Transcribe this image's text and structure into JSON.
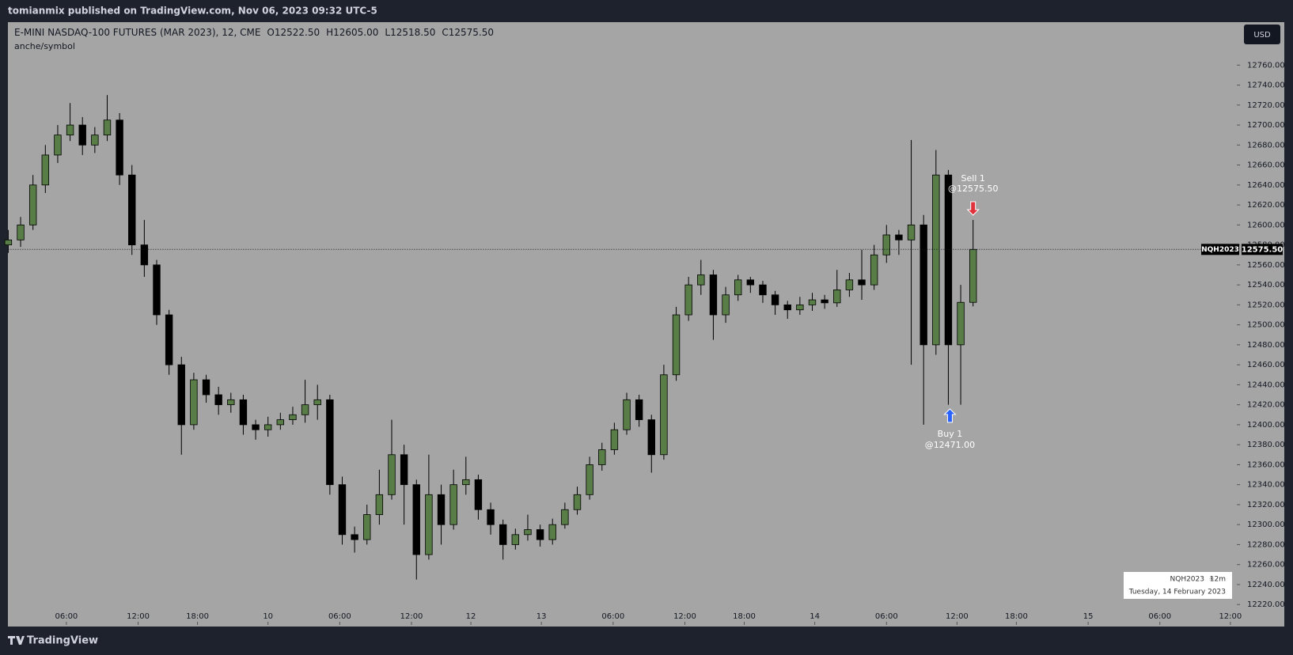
{
  "header": {
    "publisher": "tomianmix published on TradingView.com, Nov 06, 2023 09:32 UTC-5",
    "brand": "TradingView"
  },
  "chart_data": {
    "type": "candlestick",
    "symbol": "E-MINI NASDAQ-100 FUTURES (MAR 2023), 12, CME",
    "ohlc_labels": [
      "O12522.50",
      "H12605.00",
      "L12518.50",
      "C12575.50"
    ],
    "indicator": "anche/symbol",
    "currency": "USD",
    "ticker": "NQH2023",
    "last_price": {
      "value": 12575.5,
      "label": "12575.50"
    },
    "up_color": "#587d46",
    "down_color": "#000000",
    "x": [
      0,
      1,
      2,
      3,
      4,
      5,
      6,
      7,
      8,
      9,
      10,
      11,
      12,
      13,
      14,
      15,
      16,
      17,
      18,
      19,
      20,
      21,
      22,
      23,
      24,
      25,
      26,
      27,
      28,
      29,
      30,
      31,
      32,
      33,
      34,
      35,
      36,
      37,
      38,
      39,
      40,
      41,
      42,
      43,
      44,
      45,
      46,
      47,
      48,
      49,
      50,
      51,
      52,
      53,
      54,
      55,
      56,
      57,
      58,
      59,
      60,
      61,
      62,
      63,
      64,
      65,
      66,
      67,
      68,
      69,
      70,
      71,
      72,
      73,
      74,
      75,
      76,
      77,
      78
    ],
    "open": [
      12580,
      12585,
      12600,
      12640,
      12670,
      12690,
      12700,
      12680,
      12690,
      12705,
      12650,
      12580,
      12560,
      12510,
      12460,
      12400,
      12445,
      12430,
      12420,
      12425,
      12400,
      12395,
      12400,
      12405,
      12410,
      12420,
      12425,
      12340,
      12290,
      12285,
      12310,
      12330,
      12370,
      12340,
      12270,
      12330,
      12300,
      12340,
      12345,
      12315,
      12300,
      12280,
      12290,
      12295,
      12285,
      12300,
      12315,
      12330,
      12360,
      12375,
      12395,
      12425,
      12405,
      12370,
      12450,
      12510,
      12540,
      12550,
      12510,
      12530,
      12545,
      12540,
      12530,
      12520,
      12515,
      12520,
      12525,
      12522,
      12535,
      12545,
      12540,
      12570,
      12590,
      12585,
      12600,
      12480,
      12650,
      12480,
      12522.5
    ],
    "high": [
      12595,
      12608,
      12650,
      12680,
      12700,
      12722,
      12708,
      12698,
      12730,
      12712,
      12660,
      12605,
      12565,
      12515,
      12468,
      12452,
      12450,
      12438,
      12432,
      12430,
      12405,
      12408,
      12412,
      12418,
      12445,
      12440,
      12430,
      12348,
      12298,
      12320,
      12355,
      12405,
      12380,
      12345,
      12370,
      12340,
      12355,
      12368,
      12350,
      12322,
      12305,
      12296,
      12310,
      12300,
      12306,
      12322,
      12338,
      12368,
      12382,
      12402,
      12432,
      12430,
      12410,
      12460,
      12518,
      12548,
      12565,
      12555,
      12538,
      12550,
      12548,
      12544,
      12534,
      12524,
      12528,
      12532,
      12530,
      12555,
      12552,
      12575,
      12580,
      12600,
      12595,
      12685,
      12610,
      12675,
      12655,
      12540,
      12605
    ],
    "low": [
      12572,
      12578,
      12595,
      12632,
      12662,
      12684,
      12670,
      12672,
      12684,
      12640,
      12570,
      12548,
      12500,
      12450,
      12370,
      12395,
      12422,
      12410,
      12412,
      12390,
      12385,
      12388,
      12395,
      12400,
      12402,
      12405,
      12330,
      12280,
      12272,
      12280,
      12300,
      12325,
      12300,
      12245,
      12265,
      12280,
      12295,
      12330,
      12305,
      12290,
      12265,
      12275,
      12284,
      12278,
      12280,
      12296,
      12310,
      12325,
      12354,
      12370,
      12390,
      12398,
      12352,
      12365,
      12444,
      12504,
      12530,
      12485,
      12502,
      12524,
      12532,
      12522,
      12510,
      12506,
      12510,
      12514,
      12516,
      12518,
      12528,
      12525,
      12535,
      12562,
      12570,
      12460,
      12400,
      12470,
      12420,
      12420,
      12518.5
    ],
    "close": [
      12585,
      12600,
      12640,
      12670,
      12690,
      12700,
      12680,
      12690,
      12705,
      12650,
      12580,
      12560,
      12510,
      12460,
      12400,
      12445,
      12430,
      12420,
      12425,
      12400,
      12395,
      12400,
      12405,
      12410,
      12420,
      12425,
      12340,
      12290,
      12285,
      12310,
      12330,
      12370,
      12340,
      12270,
      12330,
      12300,
      12340,
      12345,
      12315,
      12300,
      12280,
      12290,
      12295,
      12285,
      12300,
      12315,
      12330,
      12360,
      12375,
      12395,
      12425,
      12405,
      12370,
      12450,
      12510,
      12540,
      12550,
      12510,
      12530,
      12545,
      12540,
      12530,
      12520,
      12515,
      12520,
      12525,
      12522,
      12535,
      12545,
      12540,
      12570,
      12590,
      12585,
      12600,
      12480,
      12650,
      12480,
      12522.5,
      12575.5
    ],
    "xlim": [
      0,
      99.33
    ],
    "xticks": [
      {
        "value": 4.7,
        "label": "06:00"
      },
      {
        "value": 10.5,
        "label": "12:00"
      },
      {
        "value": 15.3,
        "label": "18:00"
      },
      {
        "value": 21,
        "label": "10"
      },
      {
        "value": 26.8,
        "label": "06:00"
      },
      {
        "value": 32.6,
        "label": "12:00"
      },
      {
        "value": 37.4,
        "label": "12"
      },
      {
        "value": 43.1,
        "label": "13"
      },
      {
        "value": 48.9,
        "label": "06:00"
      },
      {
        "value": 54.7,
        "label": "12:00"
      },
      {
        "value": 59.5,
        "label": "18:00"
      },
      {
        "value": 65.2,
        "label": "14"
      },
      {
        "value": 71,
        "label": "06:00"
      },
      {
        "value": 76.7,
        "label": "12:00"
      },
      {
        "value": 81.5,
        "label": "18:00"
      },
      {
        "value": 87.3,
        "label": "15"
      },
      {
        "value": 93.1,
        "label": "06:00"
      },
      {
        "value": 98.8,
        "label": "12:00"
      }
    ],
    "ylim": [
      12198,
      12803
    ],
    "yticks": [
      {
        "value": 12220,
        "label": "12220.00"
      },
      {
        "value": 12240,
        "label": "12240.00"
      },
      {
        "value": 12260,
        "label": "12260.00"
      },
      {
        "value": 12280,
        "label": "12280.00"
      },
      {
        "value": 12300,
        "label": "12300.00"
      },
      {
        "value": 12320,
        "label": "12320.00"
      },
      {
        "value": 12340,
        "label": "12340.00"
      },
      {
        "value": 12360,
        "label": "12360.00"
      },
      {
        "value": 12380,
        "label": "12380.00"
      },
      {
        "value": 12400,
        "label": "12400.00"
      },
      {
        "value": 12420,
        "label": "12420.00"
      },
      {
        "value": 12440,
        "label": "12440.00"
      },
      {
        "value": 12460,
        "label": "12460.00"
      },
      {
        "value": 12480,
        "label": "12480.00"
      },
      {
        "value": 12500,
        "label": "12500.00"
      },
      {
        "value": 12520,
        "label": "12520.00"
      },
      {
        "value": 12540,
        "label": "12540.00"
      },
      {
        "value": 12560,
        "label": "12560.00"
      },
      {
        "value": 12580,
        "label": "12580.00"
      },
      {
        "value": 12600,
        "label": "12600.00"
      },
      {
        "value": 12620,
        "label": "12620.00"
      },
      {
        "value": 12640,
        "label": "12640.00"
      },
      {
        "value": 12660,
        "label": "12660.00"
      },
      {
        "value": 12680,
        "label": "12680.00"
      },
      {
        "value": 12700,
        "label": "12700.00"
      },
      {
        "value": 12720,
        "label": "12720.00"
      },
      {
        "value": 12740,
        "label": "12740.00"
      },
      {
        "value": 12760,
        "label": "12760.00"
      }
    ],
    "annotations": [
      {
        "text": "Sell 1",
        "price": {
          "value": 12575.5,
          "label": "@12575.50"
        },
        "color": "#e0323c"
      },
      {
        "text": "Buy 1",
        "price": {
          "value": 12471,
          "label": "@12471.00"
        },
        "color": "#2962ff"
      }
    ],
    "info_box": {
      "ticker": "NQH2023",
      "interval": "12m",
      "date": "Tuesday, 14 February 2023"
    }
  }
}
